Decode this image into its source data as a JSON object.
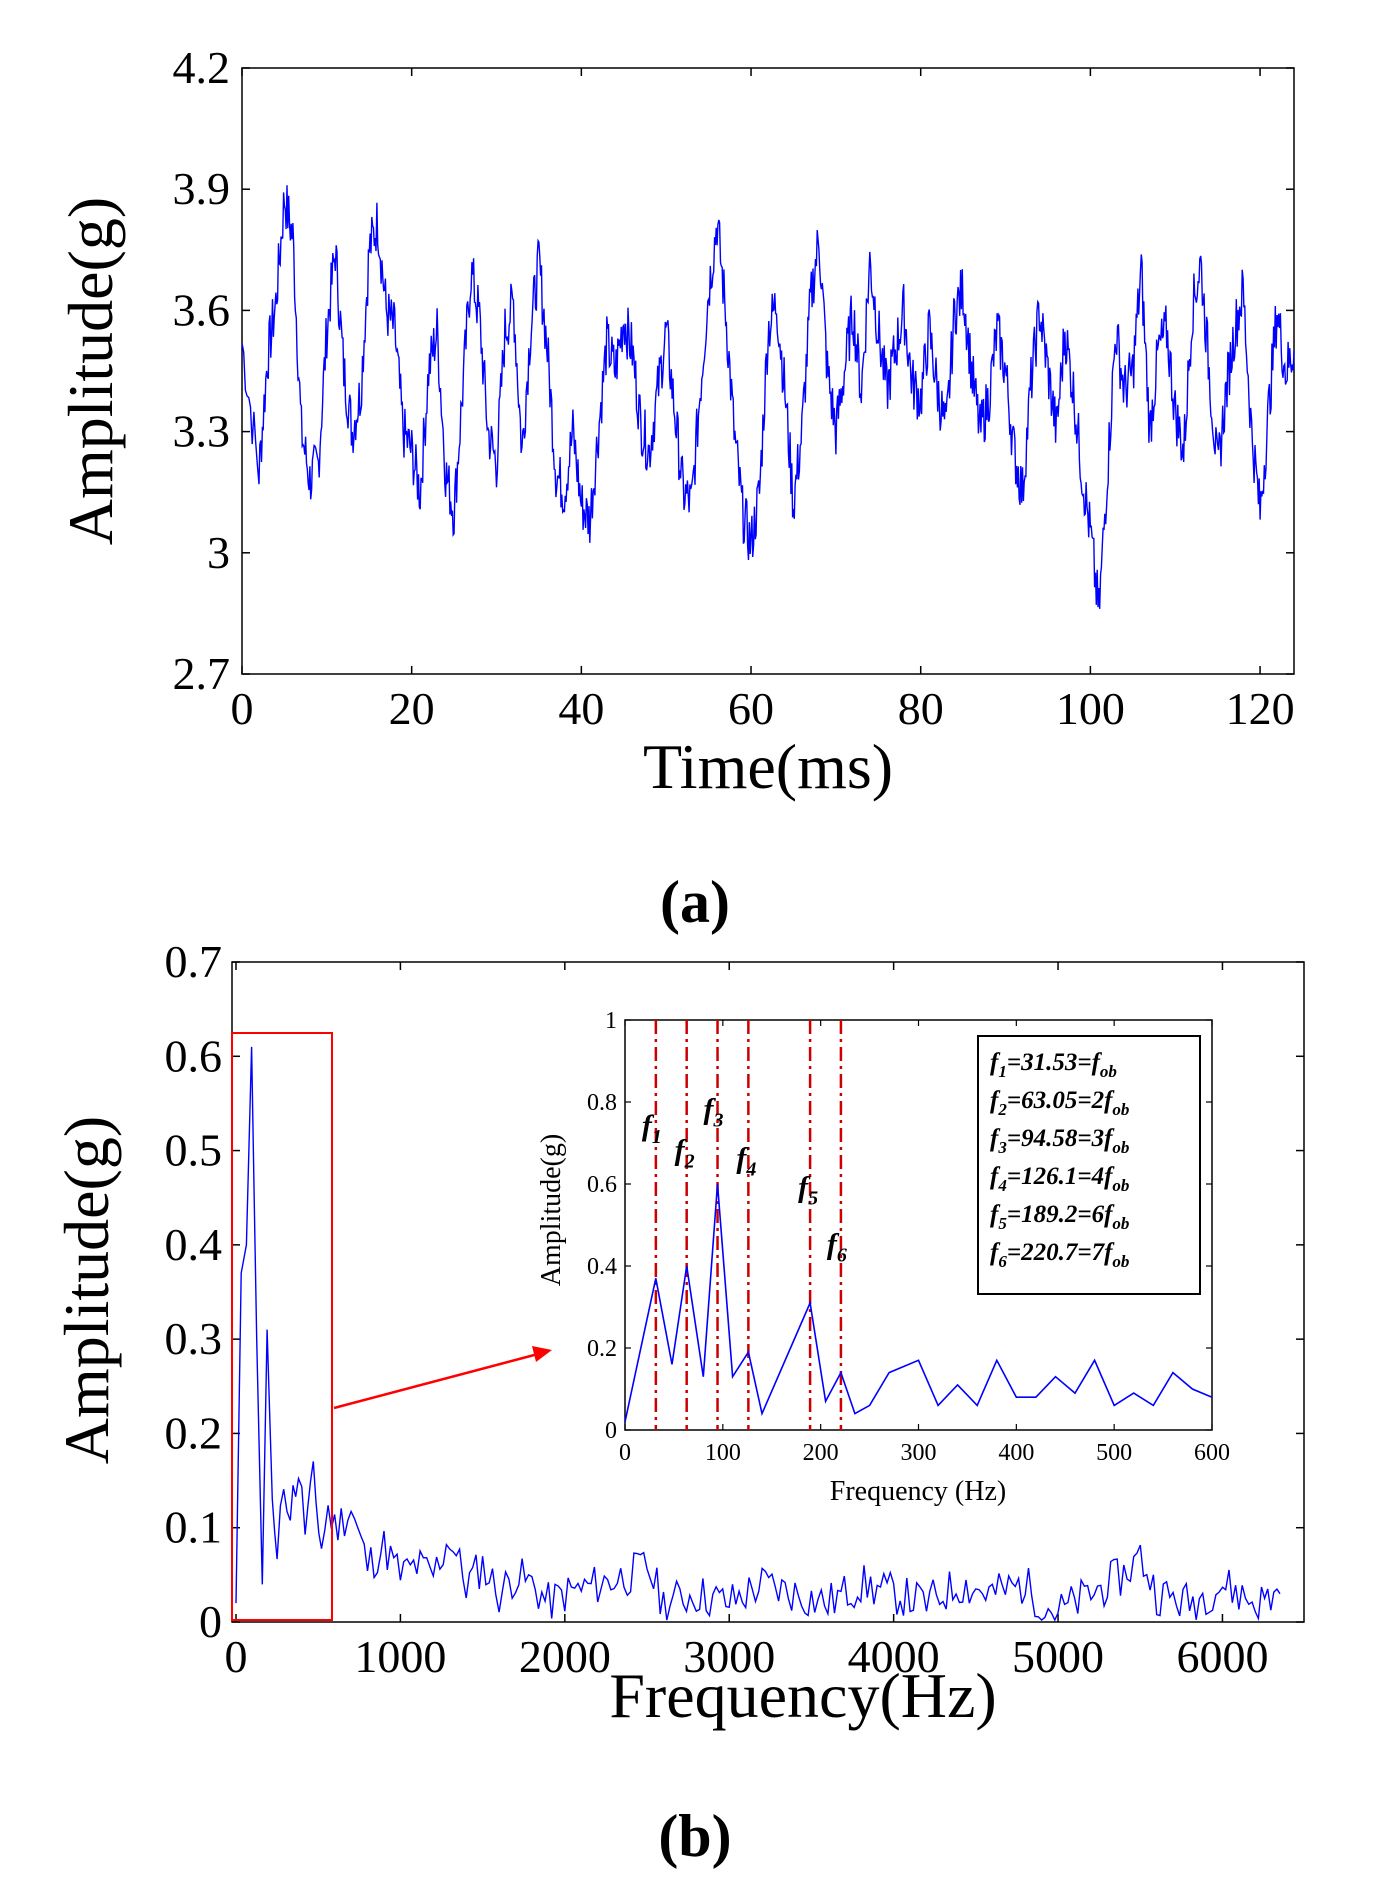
{
  "chart_data": [
    {
      "type": "line",
      "panel_label": "(a)",
      "xlabel": "Time(ms)",
      "ylabel": "Amplitude(g)",
      "xlim": [
        0,
        124
      ],
      "ylim": [
        2.7,
        4.2
      ],
      "xticks": [
        "0",
        "20",
        "40",
        "60",
        "80",
        "100",
        "120"
      ],
      "xtick_values": [
        0,
        20,
        40,
        60,
        80,
        100,
        120
      ],
      "yticks": [
        "2.7",
        "3",
        "3.3",
        "3.6",
        "3.9",
        "4.2"
      ],
      "ytick_values": [
        2.7,
        3.0,
        3.3,
        3.6,
        3.9,
        4.2
      ],
      "series": [
        {
          "name": "time signal",
          "color": "#0000ff",
          "x": [
            0,
            2,
            3,
            4,
            5,
            6,
            7,
            8,
            9,
            10,
            11,
            12,
            13,
            14,
            15,
            16,
            17,
            18,
            19,
            20,
            21,
            22,
            23,
            24,
            25,
            26,
            27,
            28,
            29,
            30,
            31,
            32,
            33,
            34,
            35,
            36,
            37,
            38,
            39,
            40,
            41,
            42,
            43,
            44,
            45,
            46,
            47,
            48,
            49,
            50,
            51,
            52,
            53,
            54,
            55,
            56,
            57,
            58,
            59,
            60,
            61,
            62,
            63,
            64,
            65,
            66,
            67,
            68,
            69,
            70,
            71,
            72,
            73,
            74,
            75,
            76,
            77,
            78,
            79,
            80,
            81,
            82,
            83,
            84,
            85,
            86,
            87,
            88,
            89,
            90,
            91,
            92,
            93,
            94,
            95,
            96,
            97,
            98,
            99,
            100,
            101,
            102,
            103,
            104,
            105,
            106,
            107,
            108,
            109,
            110,
            111,
            112,
            113,
            114,
            115,
            116,
            117,
            118,
            119,
            120,
            121,
            122,
            123,
            124
          ],
          "values": [
            3.52,
            3.2,
            3.48,
            3.62,
            3.88,
            3.78,
            3.3,
            3.18,
            3.22,
            3.55,
            3.75,
            3.45,
            3.3,
            3.4,
            3.75,
            3.82,
            3.6,
            3.55,
            3.3,
            3.25,
            3.15,
            3.45,
            3.55,
            3.2,
            3.1,
            3.4,
            3.7,
            3.58,
            3.3,
            3.22,
            3.55,
            3.62,
            3.25,
            3.55,
            3.72,
            3.5,
            3.2,
            3.15,
            3.3,
            3.12,
            3.08,
            3.3,
            3.52,
            3.45,
            3.58,
            3.5,
            3.32,
            3.25,
            3.4,
            3.55,
            3.35,
            3.15,
            3.12,
            3.4,
            3.65,
            3.82,
            3.6,
            3.3,
            3.1,
            3.02,
            3.15,
            3.55,
            3.62,
            3.4,
            3.12,
            3.3,
            3.62,
            3.78,
            3.45,
            3.3,
            3.45,
            3.6,
            3.4,
            3.72,
            3.55,
            3.4,
            3.5,
            3.6,
            3.42,
            3.38,
            3.55,
            3.4,
            3.3,
            3.6,
            3.65,
            3.45,
            3.3,
            3.38,
            3.55,
            3.45,
            3.25,
            3.15,
            3.42,
            3.6,
            3.45,
            3.3,
            3.55,
            3.4,
            3.2,
            3.05,
            2.85,
            3.2,
            3.55,
            3.4,
            3.45,
            3.7,
            3.3,
            3.5,
            3.55,
            3.35,
            3.25,
            3.6,
            3.72,
            3.45,
            3.2,
            3.4,
            3.55,
            3.65,
            3.3,
            3.1,
            3.35,
            3.6,
            3.45,
            3.5
          ]
        }
      ]
    },
    {
      "type": "line",
      "panel_label": "(b)",
      "xlabel": "Frequency(Hz)",
      "ylabel": "Amplitude(g)",
      "xlim": [
        0,
        6400
      ],
      "ylim": [
        0,
        0.7
      ],
      "xticks": [
        "0",
        "1000",
        "2000",
        "3000",
        "4000",
        "5000",
        "6000"
      ],
      "xtick_values": [
        0,
        1000,
        2000,
        3000,
        4000,
        5000,
        6000
      ],
      "yticks": [
        "0",
        "0.1",
        "0.2",
        "0.3",
        "0.4",
        "0.5",
        "0.6",
        "0.7"
      ],
      "ytick_values": [
        0,
        0.1,
        0.2,
        0.3,
        0.4,
        0.5,
        0.6,
        0.7
      ],
      "zoom_box": {
        "x_range": [
          0,
          600
        ],
        "y_range": [
          0,
          0.62
        ],
        "color": "#ff0000"
      },
      "series": [
        {
          "name": "spectrum",
          "color": "#0000ff",
          "x": [
            0,
            31.5,
            63,
            94.6,
            126,
            160,
            189,
            221,
            250,
            290,
            330,
            380,
            420,
            470,
            520,
            560,
            600,
            700,
            800,
            900,
            1000,
            1100,
            1200,
            1300,
            1400,
            1500,
            1600,
            1700,
            1800,
            1900,
            2000,
            2200,
            2400,
            2500,
            2600,
            2800,
            3000,
            3200,
            3400,
            3600,
            3800,
            4000,
            4200,
            4400,
            4600,
            4800,
            4900,
            5000,
            5200,
            5400,
            5500,
            5600,
            5800,
            6000,
            6200,
            6350
          ],
          "values": [
            0.02,
            0.37,
            0.4,
            0.61,
            0.3,
            0.04,
            0.31,
            0.13,
            0.06,
            0.15,
            0.12,
            0.16,
            0.1,
            0.15,
            0.08,
            0.12,
            0.1,
            0.12,
            0.06,
            0.08,
            0.05,
            0.06,
            0.05,
            0.09,
            0.04,
            0.06,
            0.03,
            0.05,
            0.04,
            0.02,
            0.03,
            0.04,
            0.05,
            0.06,
            0.02,
            0.03,
            0.02,
            0.04,
            0.03,
            0.02,
            0.04,
            0.03,
            0.02,
            0.04,
            0.03,
            0.04,
            0.02,
            0.01,
            0.03,
            0.05,
            0.07,
            0.03,
            0.02,
            0.04,
            0.02,
            0.03
          ]
        }
      ],
      "inset": {
        "xlabel": "Frequency (Hz)",
        "ylabel": "Amplitude(g)",
        "xlim": [
          0,
          600
        ],
        "ylim": [
          0,
          1
        ],
        "xticks": [
          "0",
          "100",
          "200",
          "300",
          "400",
          "500",
          "600"
        ],
        "xtick_values": [
          0,
          100,
          200,
          300,
          400,
          500,
          600
        ],
        "yticks": [
          "0",
          "0.2",
          "0.4",
          "0.6",
          "0.8",
          "1"
        ],
        "ytick_values": [
          0,
          0.2,
          0.4,
          0.6,
          0.8,
          1
        ],
        "x": [
          0,
          31.53,
          48,
          63.05,
          80,
          94.58,
          110,
          126.1,
          140,
          189.2,
          205,
          220.7,
          235,
          250,
          270,
          280,
          300,
          320,
          340,
          360,
          380,
          400,
          420,
          440,
          460,
          480,
          500,
          520,
          540,
          560,
          580,
          600
        ],
        "values": [
          0.02,
          0.37,
          0.16,
          0.4,
          0.13,
          0.6,
          0.13,
          0.19,
          0.04,
          0.31,
          0.07,
          0.14,
          0.04,
          0.06,
          0.14,
          0.15,
          0.17,
          0.06,
          0.11,
          0.06,
          0.17,
          0.08,
          0.08,
          0.13,
          0.09,
          0.17,
          0.06,
          0.09,
          0.06,
          0.14,
          0.1,
          0.08
        ],
        "marker_lines": [
          31.53,
          63.05,
          94.58,
          126.1,
          189.2,
          220.7
        ],
        "marker_color": "#cc0000",
        "marker_labels": [
          {
            "base": "f",
            "sub": "1"
          },
          {
            "base": "f",
            "sub": "2"
          },
          {
            "base": "f",
            "sub": "3"
          },
          {
            "base": "f",
            "sub": "4"
          },
          {
            "base": "f",
            "sub": "5"
          },
          {
            "base": "f",
            "sub": "6"
          }
        ],
        "legend": [
          {
            "base": "f",
            "sub": "1",
            "eq": "=31.53=",
            "mult": "",
            "tail": "f",
            "tail_sub": "ob"
          },
          {
            "base": "f",
            "sub": "2",
            "eq": "=63.05=",
            "mult": "2",
            "tail": "f",
            "tail_sub": "ob"
          },
          {
            "base": "f",
            "sub": "3",
            "eq": "=94.58=",
            "mult": "3",
            "tail": "f",
            "tail_sub": "ob"
          },
          {
            "base": "f",
            "sub": "4",
            "eq": "=126.1=",
            "mult": "4",
            "tail": "f",
            "tail_sub": "ob"
          },
          {
            "base": "f",
            "sub": "5",
            "eq": "=189.2=",
            "mult": "6",
            "tail": "f",
            "tail_sub": "ob"
          },
          {
            "base": "f",
            "sub": "6",
            "eq": "=220.7=",
            "mult": "7",
            "tail": "f",
            "tail_sub": "ob"
          }
        ]
      }
    }
  ]
}
